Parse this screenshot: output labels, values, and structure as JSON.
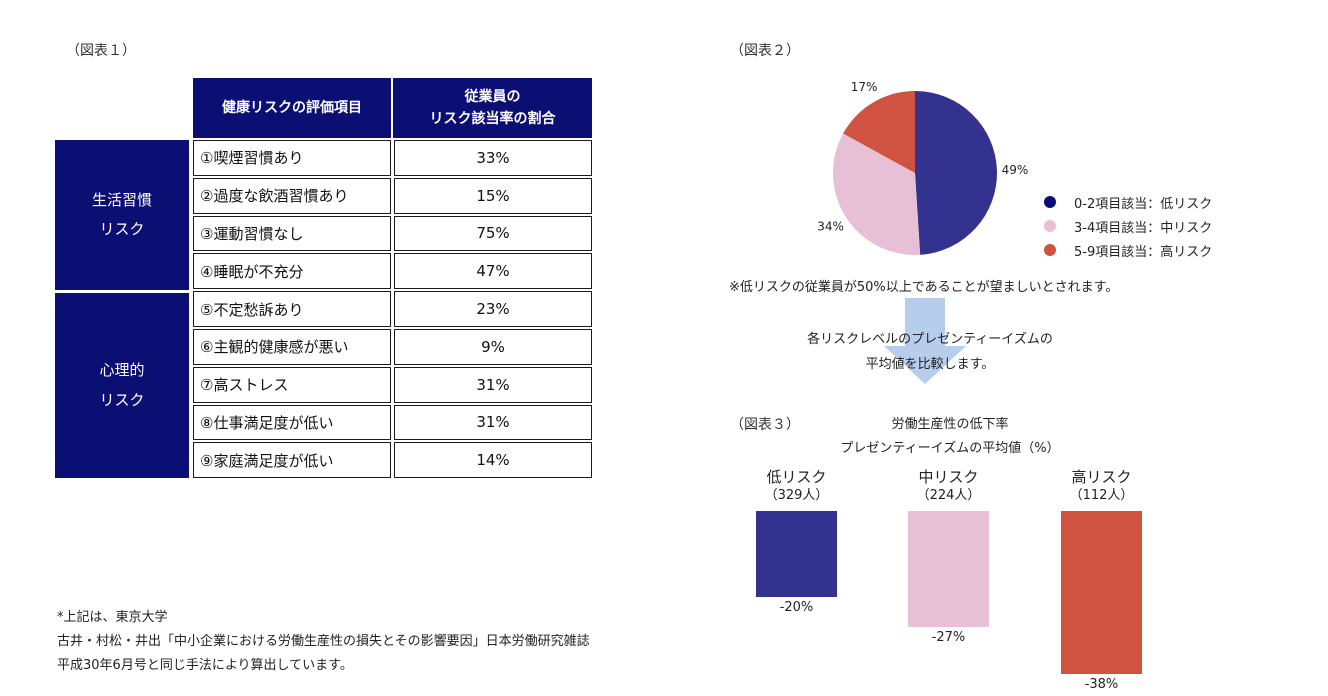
{
  "fig1": {
    "caption": "（図表１）",
    "header_item": "健康リスクの評価項目",
    "header_pct_line1": "従業員の",
    "header_pct_line2": "リスク該当率の割合",
    "categories": [
      {
        "line1": "生活習慣",
        "line2": "リスク"
      },
      {
        "line1": "心理的",
        "line2": "リスク"
      }
    ],
    "rows": [
      {
        "item": "①喫煙習慣あり",
        "pct": "33%"
      },
      {
        "item": "②過度な飲酒習慣あり",
        "pct": "15%"
      },
      {
        "item": "③運動習慣なし",
        "pct": "75%"
      },
      {
        "item": "④睡眠が不充分",
        "pct": "47%"
      },
      {
        "item": "⑤不定愁訴あり",
        "pct": "23%"
      },
      {
        "item": "⑥主観的健康感が悪い",
        "pct": "9%"
      },
      {
        "item": "⑦高ストレス",
        "pct": "31%"
      },
      {
        "item": "⑧仕事満足度が低い",
        "pct": "31%"
      },
      {
        "item": "⑨家庭満足度が低い",
        "pct": "14%"
      }
    ]
  },
  "fig2": {
    "caption": "（図表２）",
    "note": "※低リスクの従業員が50%以上であることが望ましいとされます。"
  },
  "flow": {
    "line1": "各リスクレベルのプレゼンティーイズムの",
    "line2": "平均値を比較します。"
  },
  "fig3": {
    "caption": "（図表３）",
    "title_line1": "労働生産性の低下率",
    "title_line2": "プレゼンティーイズムの平均値（%）"
  },
  "footnote": {
    "line1": "*上記は、東京大学",
    "line2": "古井・村松・井出「中小企業における労働生産性の損失とその影響要因」日本労働研究雑誌",
    "line3": "平成30年6月号と同じ手法により算出しています。"
  },
  "chart_data": [
    {
      "type": "pie",
      "labels": [
        "0-2項目該当：低リスク",
        "3-4項目該当：中リスク",
        "5-9項目該当：高リスク"
      ],
      "values": [
        49,
        34,
        17
      ],
      "value_labels": [
        "49%",
        "34%",
        "17%"
      ],
      "colors": [
        "#33338f",
        "#e8c0d6",
        "#d05240"
      ],
      "legend_colors": [
        "#0b0f74",
        "#e8c0d6",
        "#d05240"
      ],
      "legend": "right"
    },
    {
      "type": "bar",
      "categories": [
        "低リスク",
        "中リスク",
        "高リスク"
      ],
      "counts": [
        "（329人）",
        "（224人）",
        "（112人）"
      ],
      "values": [
        -20,
        -27,
        -38
      ],
      "value_labels": [
        "-20%",
        "-27%",
        "-38%"
      ],
      "colors": [
        "#33338f",
        "#e8c0d6",
        "#d05240"
      ]
    }
  ]
}
